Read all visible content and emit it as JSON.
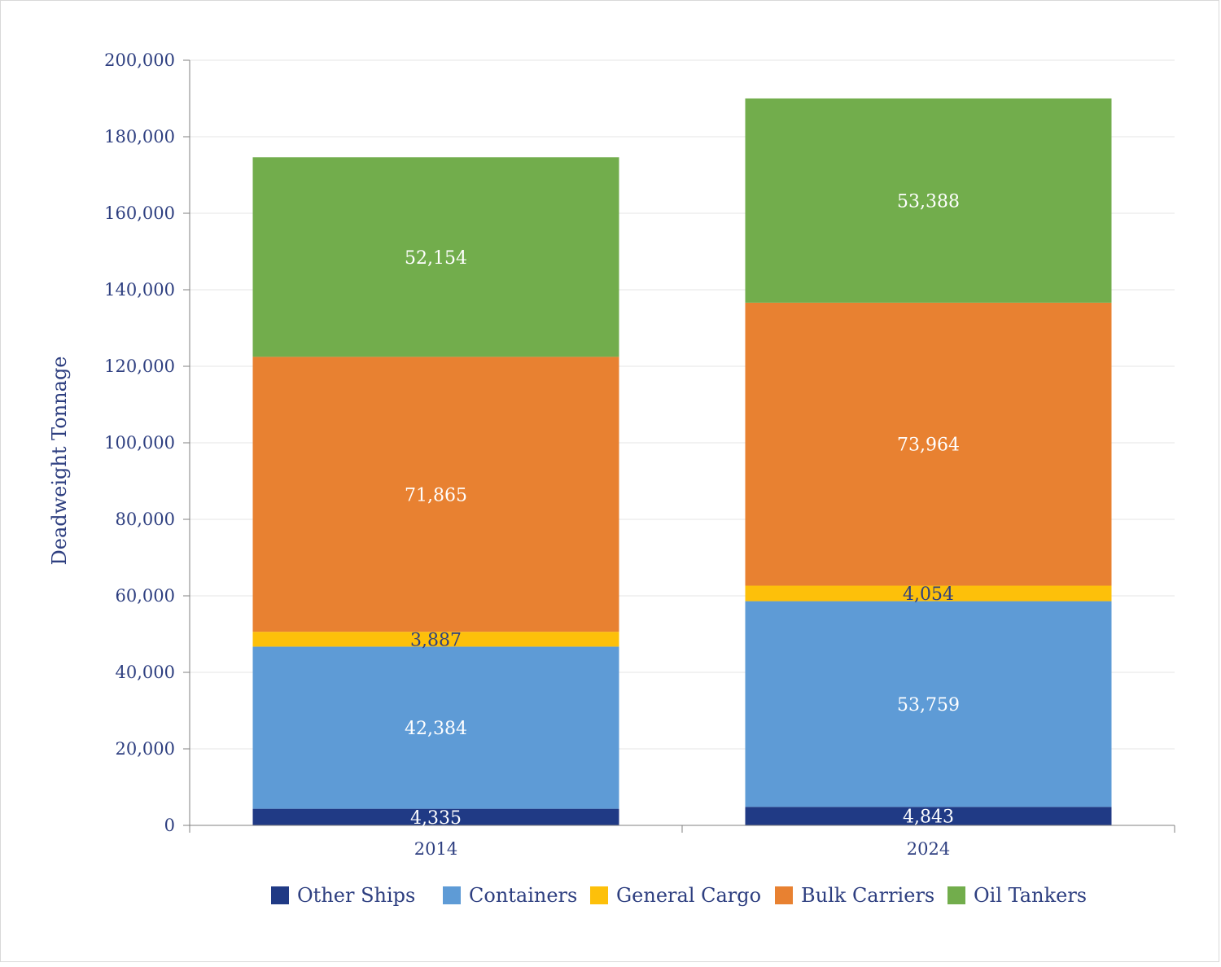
{
  "chart_data": {
    "type": "bar",
    "stacked": true,
    "title": "",
    "xlabel": "",
    "ylabel": "Deadweight Tonnage",
    "ylim": [
      0,
      200000
    ],
    "yticks": [
      "0",
      "20,000",
      "40,000",
      "60,000",
      "80,000",
      "100,000",
      "120,000",
      "140,000",
      "160,000",
      "180,000",
      "200,000"
    ],
    "ytick_values": [
      0,
      20000,
      40000,
      60000,
      80000,
      100000,
      120000,
      140000,
      160000,
      180000,
      200000
    ],
    "grid": true,
    "legend_position": "bottom",
    "categories": [
      "2014",
      "2024"
    ],
    "series": [
      {
        "name": "Other Ships",
        "color": "#203a85",
        "label_color": "#ffffff",
        "values": [
          4335,
          4843
        ],
        "labels": [
          "4,335",
          "4,843"
        ]
      },
      {
        "name": "Containers",
        "color": "#5e9bd6",
        "label_color": "#ffffff",
        "values": [
          42384,
          53759
        ],
        "labels": [
          "42,384",
          "53,759"
        ]
      },
      {
        "name": "General Cargo",
        "color": "#fdc00a",
        "label_color": "#2e3f80",
        "values": [
          3887,
          4054
        ],
        "labels": [
          "3,887",
          "4,054"
        ]
      },
      {
        "name": "Bulk Carriers",
        "color": "#e88131",
        "label_color": "#ffffff",
        "values": [
          71865,
          73964
        ],
        "labels": [
          "71,865",
          "73,964"
        ]
      },
      {
        "name": "Oil Tankers",
        "color": "#72ad4c",
        "label_color": "#ffffff",
        "values": [
          52154,
          53388
        ],
        "labels": [
          "52,154",
          "53,388"
        ]
      }
    ]
  }
}
